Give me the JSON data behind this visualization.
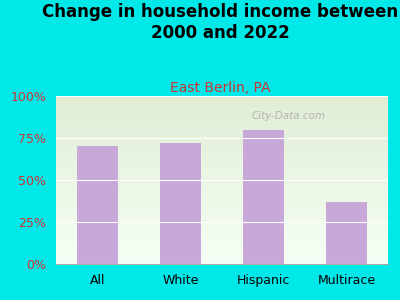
{
  "title": "Change in household income between\n2000 and 2022",
  "subtitle": "East Berlin, PA",
  "categories": [
    "All",
    "White",
    "Hispanic",
    "Multirace"
  ],
  "values": [
    70,
    72,
    80,
    37
  ],
  "bar_color": "#c8a8d8",
  "title_fontsize": 12,
  "subtitle_fontsize": 10,
  "subtitle_color": "#cc3333",
  "bg_color": "#00e8e8",
  "plot_bg_color_top": "#e0ecd4",
  "plot_bg_color_bottom": "#f5fff5",
  "yticks": [
    0,
    25,
    50,
    75,
    100
  ],
  "ytick_labels": [
    "0%",
    "25%",
    "50%",
    "75%",
    "100%"
  ],
  "ylim": [
    0,
    100
  ],
  "tick_color": "#cc3333",
  "watermark": "City-Data.com"
}
